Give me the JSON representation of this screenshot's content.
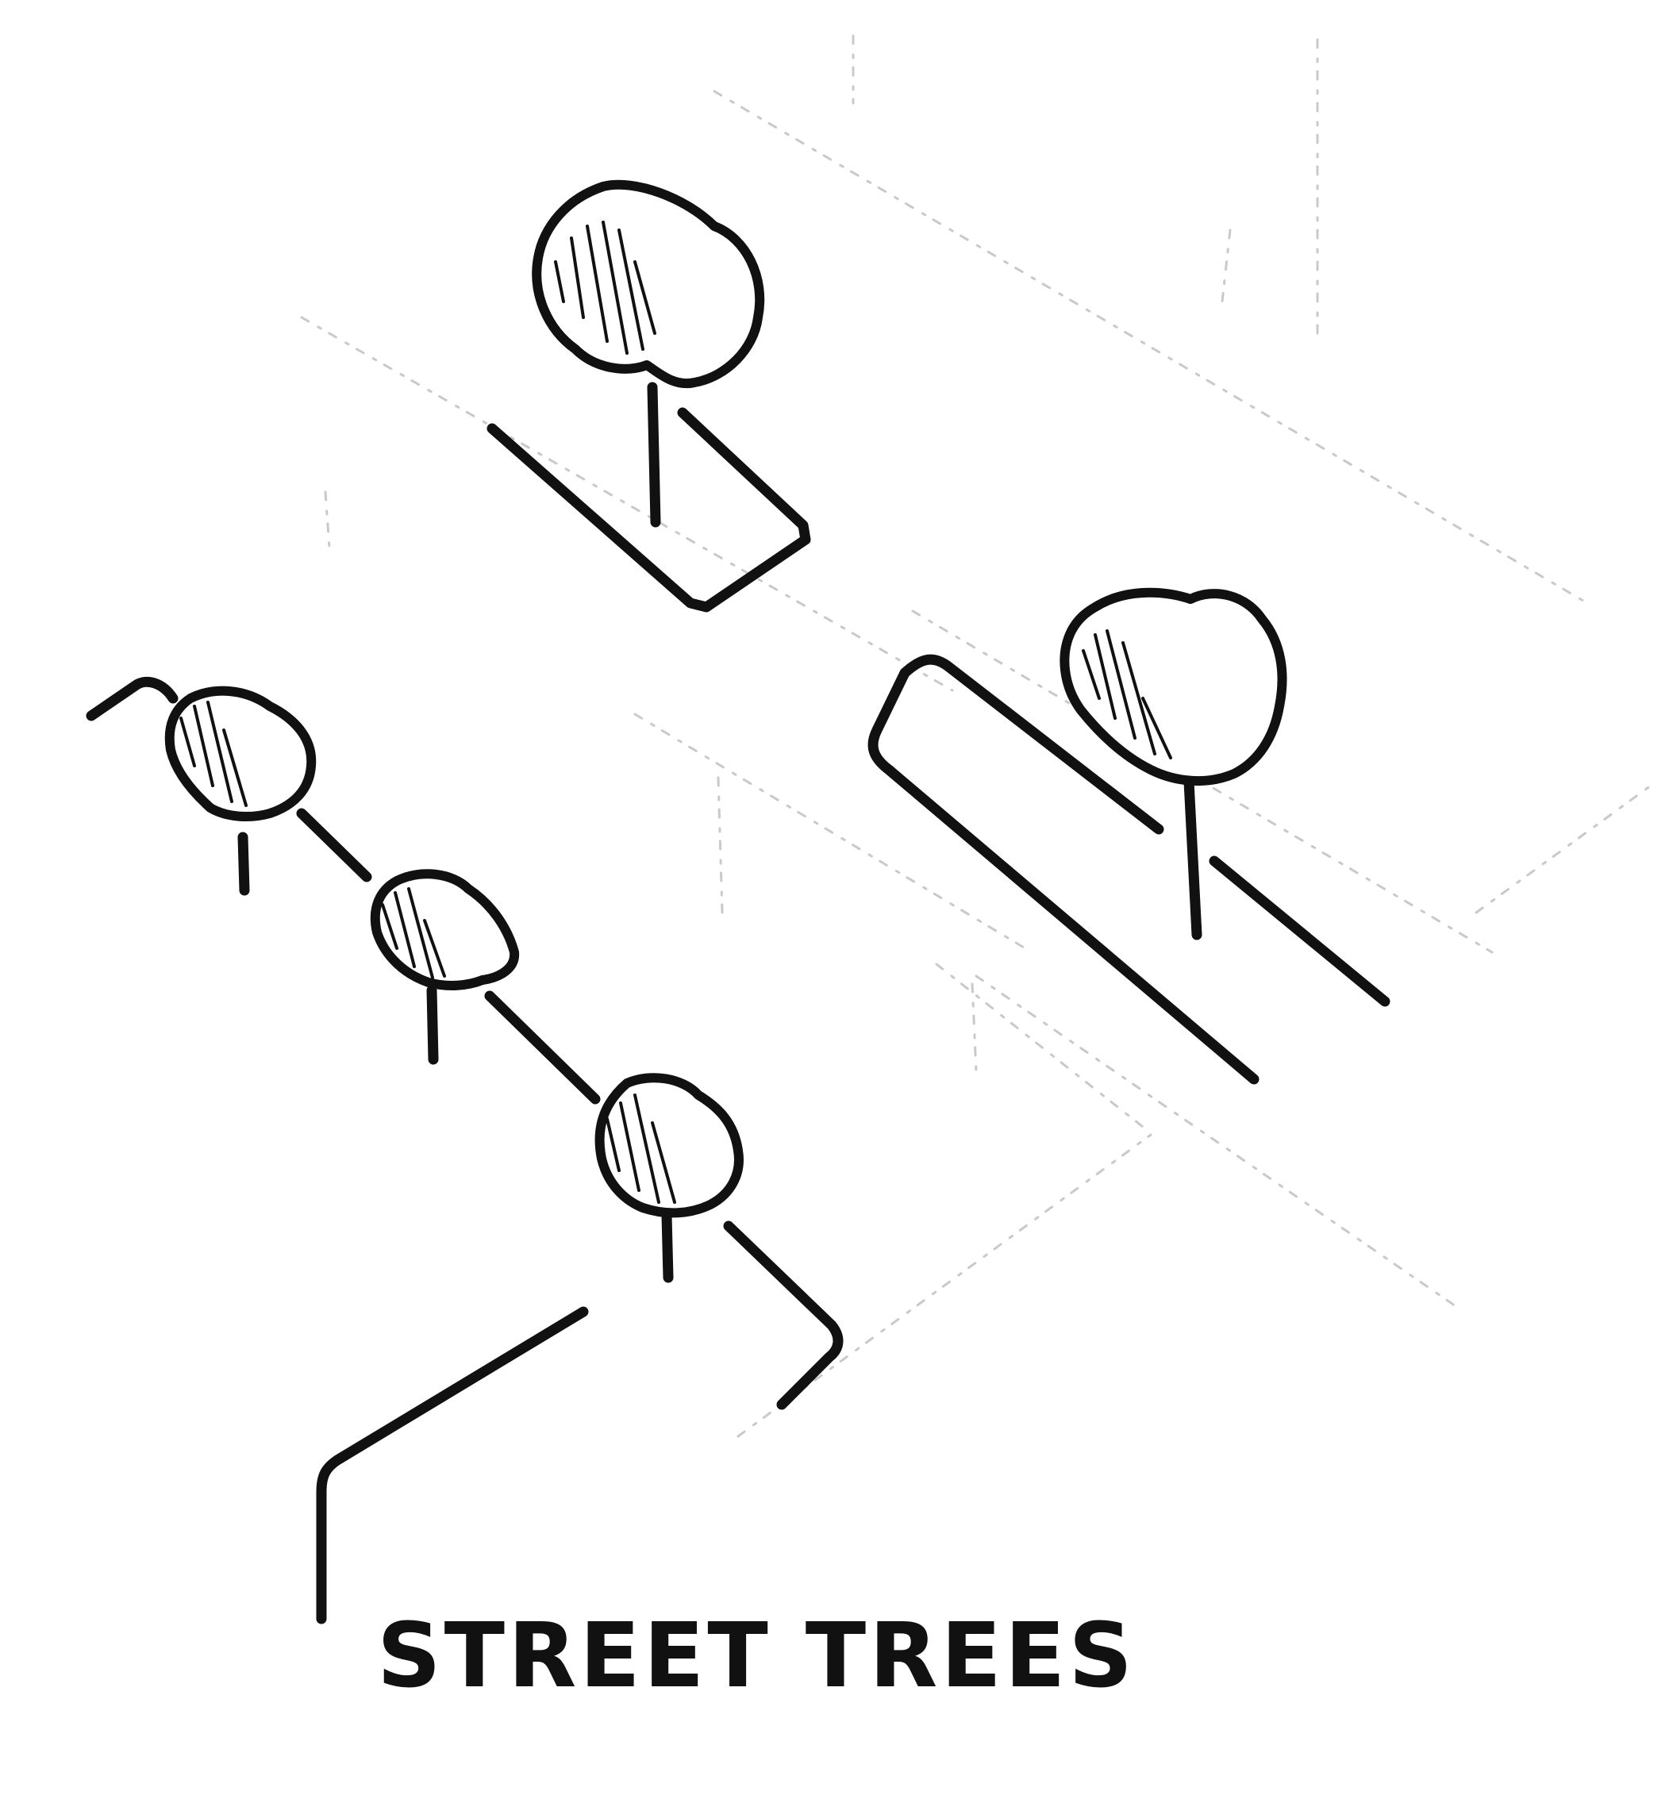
{
  "caption": "STREET TREES",
  "colors": {
    "ink": "#111111",
    "paper": "#ffffff",
    "faint_guide_lines": "#c9c9c9"
  },
  "illustration": {
    "subject": "street-trees",
    "tree_count": 5
  }
}
